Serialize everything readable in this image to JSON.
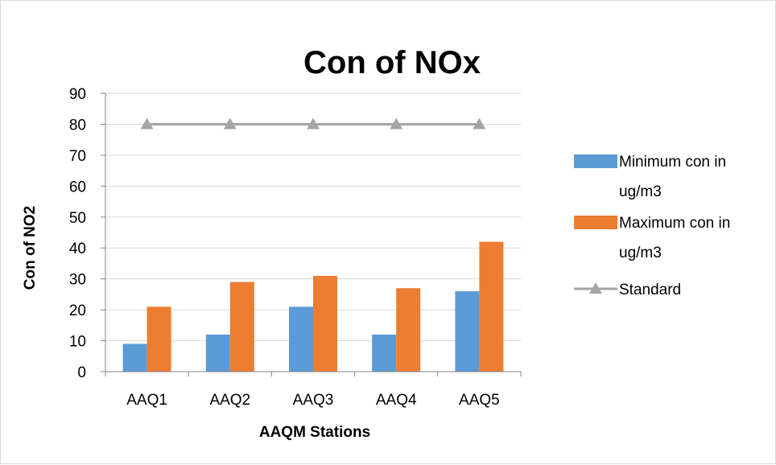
{
  "chart_data": {
    "type": "bar",
    "title": "Con of NOx",
    "xlabel": "AAQM Stations",
    "ylabel": "Con of NO2",
    "categories": [
      "AAQ1",
      "AAQ2",
      "AAQ3",
      "AAQ4",
      "AAQ5"
    ],
    "ylim": [
      0,
      90
    ],
    "yticks": [
      0,
      10,
      20,
      30,
      40,
      50,
      60,
      70,
      80,
      90
    ],
    "grid": true,
    "legend_position": "right",
    "series": [
      {
        "name": "Minimum con in ug/m3",
        "kind": "bar",
        "color": "#5b9bd5",
        "values": [
          9,
          12,
          21,
          12,
          26
        ]
      },
      {
        "name": "Maximum con in ug/m3",
        "kind": "bar",
        "color": "#ed7d31",
        "values": [
          21,
          29,
          31,
          27,
          42
        ]
      },
      {
        "name": "Standard",
        "kind": "line",
        "marker": "triangle",
        "color": "#a5a5a5",
        "values": [
          80,
          80,
          80,
          80,
          80
        ]
      }
    ]
  },
  "legend": {
    "items": [
      {
        "lines": [
          "Minimum con in",
          "ug/m3"
        ]
      },
      {
        "lines": [
          "Maximum con in",
          "ug/m3"
        ]
      },
      {
        "lines": [
          "Standard"
        ]
      }
    ]
  }
}
